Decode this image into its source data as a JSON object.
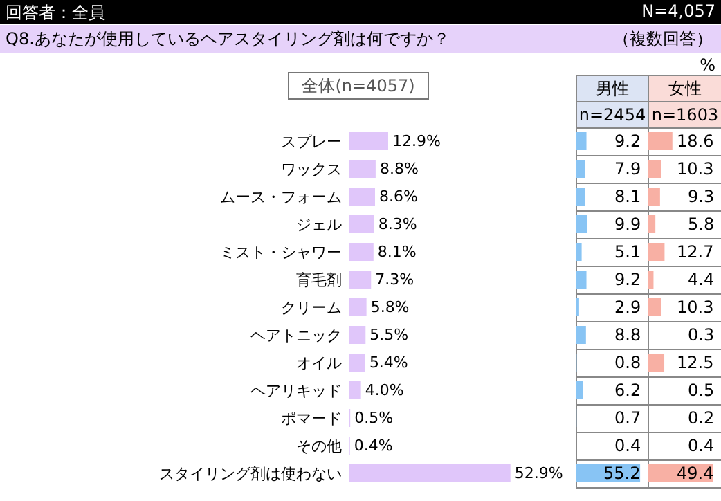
{
  "chart_data": [
    {
      "type": "bar",
      "orientation": "horizontal",
      "title": "Q8.あなたが使用しているヘアスタイリング剤は何ですか？",
      "subtitle": "全体(n=4057)",
      "annotations": [
        "回答者：全員",
        "N=4,057",
        "（複数回答）",
        "%"
      ],
      "categories": [
        "スプレー",
        "ワックス",
        "ムース・フォーム",
        "ジェル",
        "ミスト・シャワー",
        "育毛剤",
        "クリーム",
        "ヘアトニック",
        "オイル",
        "ヘアリキッド",
        "ポマード",
        "その他",
        "スタイリング剤は使わない"
      ],
      "values": [
        12.9,
        8.8,
        8.6,
        8.3,
        8.1,
        7.3,
        5.8,
        5.5,
        5.4,
        4.0,
        0.5,
        0.4,
        52.9
      ],
      "value_labels": [
        "12.9%",
        "8.8%",
        "8.6%",
        "8.3%",
        "8.1%",
        "7.3%",
        "5.8%",
        "5.5%",
        "5.4%",
        "4.0%",
        "0.5%",
        "0.4%",
        "52.9%"
      ],
      "color": "#e0c6fa"
    },
    {
      "type": "bar",
      "orientation": "horizontal",
      "title": "男性",
      "subtitle": "n=2454",
      "tick_labels": false,
      "values": [
        9.2,
        7.9,
        8.1,
        9.9,
        5.1,
        9.2,
        2.9,
        8.8,
        0.8,
        6.2,
        0.7,
        0.4,
        55.2
      ],
      "color": "#88c4f4",
      "data_labels": true
    },
    {
      "type": "bar",
      "orientation": "horizontal",
      "title": "女性",
      "subtitle": "n=1603",
      "tick_labels": false,
      "values": [
        18.6,
        10.3,
        9.3,
        5.8,
        12.7,
        4.4,
        10.3,
        0.3,
        12.5,
        0.5,
        0.2,
        0.4,
        49.4
      ],
      "color": "#f8b0a4",
      "data_labels": true
    }
  ]
}
